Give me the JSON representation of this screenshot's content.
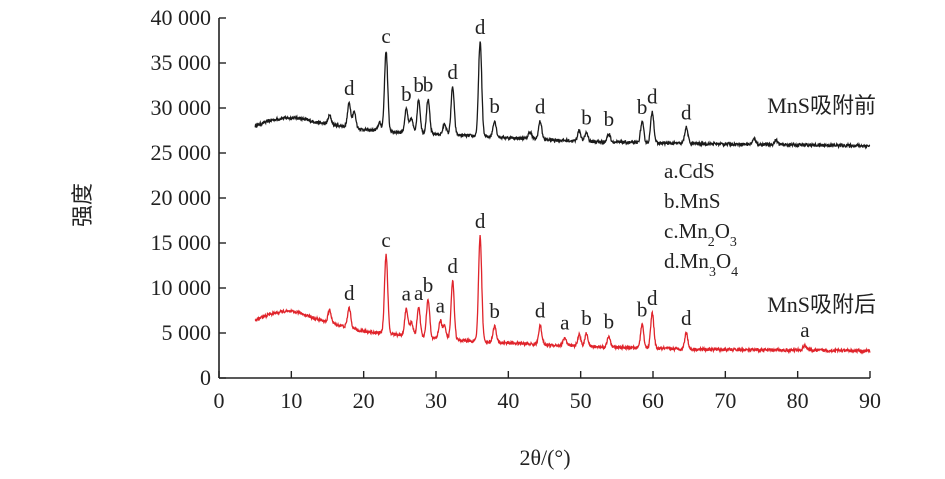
{
  "chart_data": {
    "type": "line",
    "ylabel": "强度",
    "xlabel": "2θ/(°)",
    "xlim": [
      0,
      90
    ],
    "ylim": [
      0,
      40000
    ],
    "xticks": [
      "0",
      "10",
      "20",
      "30",
      "40",
      "50",
      "60",
      "70",
      "80",
      "90"
    ],
    "yticks": [
      "0",
      "5 000",
      "10 000",
      "15 000",
      "20 000",
      "25 000",
      "30 000",
      "35 000",
      "40 000"
    ],
    "grid": false,
    "legend_entries": [
      "a.CdS",
      "b.MnS",
      "c.Mn₂O₃",
      "d.Mn₃O₄"
    ],
    "series": [
      {
        "name": "MnS吸附前",
        "color": "#1a1a1a",
        "baseline": [
          [
            5,
            28000
          ],
          [
            7,
            28600
          ],
          [
            9,
            28900
          ],
          [
            11,
            28900
          ],
          [
            13,
            28500
          ],
          [
            15,
            28200
          ],
          [
            17,
            28000
          ],
          [
            20,
            27600
          ],
          [
            25,
            27300
          ],
          [
            30,
            27100
          ],
          [
            35,
            26900
          ],
          [
            40,
            26700
          ],
          [
            45,
            26500
          ],
          [
            50,
            26300
          ],
          [
            55,
            26200
          ],
          [
            60,
            26100
          ],
          [
            65,
            26050
          ],
          [
            70,
            26000
          ],
          [
            75,
            25950
          ],
          [
            80,
            25900
          ],
          [
            85,
            25850
          ],
          [
            90,
            25800
          ]
        ],
        "peaks": [
          {
            "x": 15.3,
            "height": 1000,
            "label": ""
          },
          {
            "x": 18.0,
            "height": 2700,
            "label": "d"
          },
          {
            "x": 18.7,
            "height": 1800,
            "label": ""
          },
          {
            "x": 22.2,
            "height": 900,
            "label": ""
          },
          {
            "x": 23.1,
            "height": 8900,
            "label": "c"
          },
          {
            "x": 25.9,
            "height": 2600,
            "label": "b"
          },
          {
            "x": 26.6,
            "height": 1600,
            "label": ""
          },
          {
            "x": 27.6,
            "height": 3700,
            "label": "b"
          },
          {
            "x": 28.9,
            "height": 3800,
            "label": "b"
          },
          {
            "x": 31.2,
            "height": 1200,
            "label": ""
          },
          {
            "x": 32.3,
            "height": 5300,
            "label": "d"
          },
          {
            "x": 36.1,
            "height": 10500,
            "label": "d"
          },
          {
            "x": 38.1,
            "height": 1800,
            "label": "b"
          },
          {
            "x": 43.0,
            "height": 800,
            "label": ""
          },
          {
            "x": 44.4,
            "height": 2000,
            "label": "d"
          },
          {
            "x": 49.8,
            "height": 1200,
            "label": ""
          },
          {
            "x": 50.8,
            "height": 1000,
            "label": "b"
          },
          {
            "x": 53.9,
            "height": 900,
            "label": "b"
          },
          {
            "x": 58.5,
            "height": 2300,
            "label": "b"
          },
          {
            "x": 59.9,
            "height": 3500,
            "label": "d"
          },
          {
            "x": 64.6,
            "height": 1800,
            "label": "d"
          },
          {
            "x": 74.0,
            "height": 600,
            "label": ""
          },
          {
            "x": 77.0,
            "height": 500,
            "label": ""
          }
        ]
      },
      {
        "name": "MnS吸附后",
        "color": "#e0242b",
        "baseline": [
          [
            5,
            6400
          ],
          [
            7,
            7100
          ],
          [
            9,
            7400
          ],
          [
            11,
            7300
          ],
          [
            13,
            6700
          ],
          [
            15,
            6200
          ],
          [
            17,
            5800
          ],
          [
            20,
            5200
          ],
          [
            25,
            4800
          ],
          [
            30,
            4400
          ],
          [
            35,
            4100
          ],
          [
            40,
            3900
          ],
          [
            45,
            3700
          ],
          [
            50,
            3500
          ],
          [
            55,
            3400
          ],
          [
            60,
            3300
          ],
          [
            65,
            3200
          ],
          [
            70,
            3150
          ],
          [
            75,
            3100
          ],
          [
            80,
            3100
          ],
          [
            85,
            3050
          ],
          [
            90,
            3000
          ]
        ],
        "peaks": [
          {
            "x": 15.3,
            "height": 1400,
            "label": ""
          },
          {
            "x": 18.0,
            "height": 2200,
            "label": "d"
          },
          {
            "x": 23.1,
            "height": 8700,
            "label": "c"
          },
          {
            "x": 25.9,
            "height": 3000,
            "label": "a"
          },
          {
            "x": 26.6,
            "height": 1600,
            "label": ""
          },
          {
            "x": 27.6,
            "height": 3200,
            "label": "a"
          },
          {
            "x": 28.9,
            "height": 4200,
            "label": "b"
          },
          {
            "x": 30.6,
            "height": 2000,
            "label": "a"
          },
          {
            "x": 31.2,
            "height": 1400,
            "label": ""
          },
          {
            "x": 32.3,
            "height": 6500,
            "label": "d"
          },
          {
            "x": 36.1,
            "height": 11700,
            "label": "d"
          },
          {
            "x": 38.1,
            "height": 1800,
            "label": "b"
          },
          {
            "x": 44.4,
            "height": 2100,
            "label": "d"
          },
          {
            "x": 47.8,
            "height": 900,
            "label": "a"
          },
          {
            "x": 49.8,
            "height": 1300,
            "label": ""
          },
          {
            "x": 50.8,
            "height": 1500,
            "label": "b"
          },
          {
            "x": 53.9,
            "height": 1200,
            "label": "b"
          },
          {
            "x": 58.5,
            "height": 2600,
            "label": "b"
          },
          {
            "x": 59.9,
            "height": 3900,
            "label": "d"
          },
          {
            "x": 64.6,
            "height": 1800,
            "label": "d"
          },
          {
            "x": 81.0,
            "height": 600,
            "label": "a"
          }
        ]
      }
    ]
  }
}
